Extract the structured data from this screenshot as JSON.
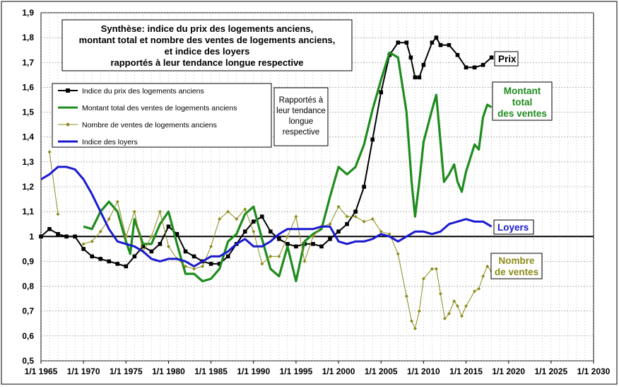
{
  "chart_data": {
    "type": "line",
    "title": [
      "Synthèse: indice du prix des logements anciens,",
      "montant total et nombre des ventes de logements anciens,",
      "et indice des loyers",
      "rapportés à leur tendance longue respective"
    ],
    "note": [
      "Rapportés à",
      "leur tendance",
      "longue",
      "respective"
    ],
    "xlim": [
      1965,
      2030
    ],
    "ylim": [
      0.5,
      1.9
    ],
    "x_ticks": [
      {
        "year": 1965,
        "label": "1/1 1965"
      },
      {
        "year": 1970,
        "label": "1/1 1970"
      },
      {
        "year": 1975,
        "label": "1/1 1975"
      },
      {
        "year": 1980,
        "label": "1/1 1980"
      },
      {
        "year": 1985,
        "label": "1/1 1985"
      },
      {
        "year": 1990,
        "label": "1/1 1990"
      },
      {
        "year": 1995,
        "label": "1/1 1995"
      },
      {
        "year": 2000,
        "label": "1/1 2000"
      },
      {
        "year": 2005,
        "label": "1/1 2005"
      },
      {
        "year": 2010,
        "label": "1/1 2010"
      },
      {
        "year": 2015,
        "label": "1/1 2015"
      },
      {
        "year": 2020,
        "label": "1/1 2020"
      },
      {
        "year": 2025,
        "label": "1/1 2025"
      },
      {
        "year": 2030,
        "label": "1/1 2030"
      }
    ],
    "y_ticks": [
      {
        "v": 1.9,
        "label": "1,9"
      },
      {
        "v": 1.8,
        "label": "1,8"
      },
      {
        "v": 1.7,
        "label": "1,7"
      },
      {
        "v": 1.6,
        "label": "1,6"
      },
      {
        "v": 1.5,
        "label": "1,5"
      },
      {
        "v": 1.4,
        "label": "1,4"
      },
      {
        "v": 1.3,
        "label": "1,3"
      },
      {
        "v": 1.2,
        "label": "1,2"
      },
      {
        "v": 1.1,
        "label": "1,1"
      },
      {
        "v": 1.0,
        "label": "1"
      },
      {
        "v": 0.9,
        "label": "0,9"
      },
      {
        "v": 0.8,
        "label": "0,8"
      },
      {
        "v": 0.7,
        "label": "0,7"
      },
      {
        "v": 0.6,
        "label": "0,6"
      },
      {
        "v": 0.5,
        "label": "0,5"
      }
    ],
    "reference_line": 1.0,
    "grid": true,
    "series": [
      {
        "key": "prix",
        "name": "Indice du prix des logements anciens",
        "end_label": [
          "Prix"
        ],
        "color": "#000000",
        "marker": "square",
        "points": [
          [
            1965,
            1.0
          ],
          [
            1966,
            1.03
          ],
          [
            1967,
            1.01
          ],
          [
            1968,
            1.0
          ],
          [
            1969,
            1.0
          ],
          [
            1970,
            0.95
          ],
          [
            1971,
            0.92
          ],
          [
            1972,
            0.91
          ],
          [
            1973,
            0.9
          ],
          [
            1974,
            0.89
          ],
          [
            1975,
            0.88
          ],
          [
            1976,
            0.92
          ],
          [
            1977,
            0.96
          ],
          [
            1978,
            0.94
          ],
          [
            1979,
            0.97
          ],
          [
            1980,
            1.04
          ],
          [
            1981,
            1.01
          ],
          [
            1982,
            0.94
          ],
          [
            1983,
            0.92
          ],
          [
            1984,
            0.9
          ],
          [
            1985,
            0.89
          ],
          [
            1986,
            0.89
          ],
          [
            1987,
            0.92
          ],
          [
            1988,
            0.97
          ],
          [
            1989,
            1.02
          ],
          [
            1990,
            1.06
          ],
          [
            1991,
            1.08
          ],
          [
            1992,
            1.02
          ],
          [
            1993,
            0.99
          ],
          [
            1994,
            0.97
          ],
          [
            1995,
            0.96
          ],
          [
            1996,
            0.97
          ],
          [
            1997,
            0.97
          ],
          [
            1998,
            0.96
          ],
          [
            1999,
            0.99
          ],
          [
            2000,
            1.02
          ],
          [
            2001,
            1.05
          ],
          [
            2002,
            1.1
          ],
          [
            2003,
            1.2
          ],
          [
            2004,
            1.39
          ],
          [
            2005,
            1.58
          ],
          [
            2006,
            1.73
          ],
          [
            2007,
            1.78
          ],
          [
            2008,
            1.78
          ],
          [
            2008.5,
            1.72
          ],
          [
            2009,
            1.64
          ],
          [
            2009.5,
            1.64
          ],
          [
            2010,
            1.69
          ],
          [
            2011,
            1.78
          ],
          [
            2011.5,
            1.8
          ],
          [
            2012,
            1.77
          ],
          [
            2013,
            1.77
          ],
          [
            2014,
            1.73
          ],
          [
            2015,
            1.68
          ],
          [
            2016,
            1.68
          ],
          [
            2017,
            1.69
          ],
          [
            2018,
            1.72
          ]
        ]
      },
      {
        "key": "montant",
        "name": "Montant total des ventes de logements anciens",
        "end_label": [
          "Montant",
          "total",
          "des ventes"
        ],
        "color": "#1e8c1e",
        "marker": "none",
        "points": [
          [
            1970,
            1.04
          ],
          [
            1971,
            1.03
          ],
          [
            1972,
            1.1
          ],
          [
            1973,
            1.14
          ],
          [
            1974,
            1.1
          ],
          [
            1975,
            0.98
          ],
          [
            1975.5,
            0.93
          ],
          [
            1976,
            1.07
          ],
          [
            1977,
            0.97
          ],
          [
            1978,
            0.97
          ],
          [
            1979,
            1.05
          ],
          [
            1980,
            1.1
          ],
          [
            1981,
            0.97
          ],
          [
            1982,
            0.85
          ],
          [
            1983,
            0.85
          ],
          [
            1984,
            0.82
          ],
          [
            1985,
            0.83
          ],
          [
            1986,
            0.87
          ],
          [
            1987,
            0.98
          ],
          [
            1988,
            1.01
          ],
          [
            1989,
            1.09
          ],
          [
            1990,
            1.12
          ],
          [
            1991,
            0.99
          ],
          [
            1992,
            0.87
          ],
          [
            1993,
            0.84
          ],
          [
            1994,
            0.96
          ],
          [
            1995,
            0.82
          ],
          [
            1996,
            0.98
          ],
          [
            1997,
            1.01
          ],
          [
            1998,
            1.03
          ],
          [
            1999,
            1.16
          ],
          [
            2000,
            1.28
          ],
          [
            2001,
            1.25
          ],
          [
            2002,
            1.28
          ],
          [
            2003,
            1.37
          ],
          [
            2004,
            1.51
          ],
          [
            2005,
            1.63
          ],
          [
            2006,
            1.74
          ],
          [
            2007,
            1.72
          ],
          [
            2008,
            1.5
          ],
          [
            2008.6,
            1.22
          ],
          [
            2009,
            1.08
          ],
          [
            2009.5,
            1.22
          ],
          [
            2010,
            1.38
          ],
          [
            2011,
            1.51
          ],
          [
            2011.5,
            1.57
          ],
          [
            2012,
            1.38
          ],
          [
            2012.4,
            1.22
          ],
          [
            2013,
            1.25
          ],
          [
            2013.6,
            1.29
          ],
          [
            2014,
            1.22
          ],
          [
            2014.5,
            1.18
          ],
          [
            2015,
            1.26
          ],
          [
            2016,
            1.37
          ],
          [
            2016.5,
            1.35
          ],
          [
            2017,
            1.48
          ],
          [
            2017.5,
            1.53
          ],
          [
            2018,
            1.52
          ]
        ]
      },
      {
        "key": "nombre",
        "name": "Nombre de ventes de logements anciens",
        "end_label": [
          "Nombre",
          "de ventes"
        ],
        "color": "#8b8b1a",
        "marker": "diamond",
        "points": [
          [
            1966,
            1.34
          ],
          [
            1967,
            1.09
          ],
          [
            1970,
            0.97
          ],
          [
            1971,
            0.98
          ],
          [
            1972,
            1.02
          ],
          [
            1973,
            1.07
          ],
          [
            1974,
            1.14
          ],
          [
            1975,
            1.0
          ],
          [
            1976,
            1.1
          ],
          [
            1977,
            0.94
          ],
          [
            1978,
            1.0
          ],
          [
            1979,
            1.1
          ],
          [
            1980,
            0.96
          ],
          [
            1981,
            0.91
          ],
          [
            1982,
            0.88
          ],
          [
            1983,
            0.87
          ],
          [
            1984,
            0.88
          ],
          [
            1985,
            0.96
          ],
          [
            1986,
            1.07
          ],
          [
            1987,
            1.1
          ],
          [
            1988,
            1.07
          ],
          [
            1989,
            1.11
          ],
          [
            1990,
            1.02
          ],
          [
            1991,
            0.89
          ],
          [
            1992,
            0.92
          ],
          [
            1993,
            0.92
          ],
          [
            1994,
            1.0
          ],
          [
            1995,
            1.08
          ],
          [
            1996,
            0.9
          ],
          [
            1997,
            1.0
          ],
          [
            1998,
            1.04
          ],
          [
            1999,
            1.05
          ],
          [
            2000,
            1.12
          ],
          [
            2001,
            1.08
          ],
          [
            2002,
            1.08
          ],
          [
            2003,
            1.06
          ],
          [
            2004,
            1.07
          ],
          [
            2005,
            1.02
          ],
          [
            2006,
            1.01
          ],
          [
            2007,
            0.93
          ],
          [
            2008,
            0.76
          ],
          [
            2008.6,
            0.66
          ],
          [
            2009,
            0.63
          ],
          [
            2009.5,
            0.7
          ],
          [
            2010,
            0.83
          ],
          [
            2011,
            0.87
          ],
          [
            2011.5,
            0.87
          ],
          [
            2012,
            0.77
          ],
          [
            2012.5,
            0.67
          ],
          [
            2013,
            0.69
          ],
          [
            2013.6,
            0.74
          ],
          [
            2014,
            0.72
          ],
          [
            2014.5,
            0.68
          ],
          [
            2015,
            0.72
          ],
          [
            2016,
            0.78
          ],
          [
            2016.5,
            0.79
          ],
          [
            2017,
            0.84
          ],
          [
            2017.5,
            0.88
          ],
          [
            2018,
            0.86
          ]
        ]
      },
      {
        "key": "loyers",
        "name": "Indice des loyers",
        "end_label": [
          "Loyers"
        ],
        "color": "#1a1ad0",
        "marker": "none",
        "points": [
          [
            1965,
            1.23
          ],
          [
            1966,
            1.25
          ],
          [
            1967,
            1.28
          ],
          [
            1968,
            1.28
          ],
          [
            1969,
            1.27
          ],
          [
            1970,
            1.23
          ],
          [
            1971,
            1.17
          ],
          [
            1972,
            1.1
          ],
          [
            1973,
            1.03
          ],
          [
            1974,
            0.98
          ],
          [
            1975,
            0.97
          ],
          [
            1976,
            0.96
          ],
          [
            1977,
            0.94
          ],
          [
            1978,
            0.91
          ],
          [
            1979,
            0.9
          ],
          [
            1980,
            0.91
          ],
          [
            1981,
            0.91
          ],
          [
            1982,
            0.9
          ],
          [
            1983,
            0.88
          ],
          [
            1984,
            0.9
          ],
          [
            1985,
            0.92
          ],
          [
            1986,
            0.92
          ],
          [
            1987,
            0.94
          ],
          [
            1988,
            0.97
          ],
          [
            1989,
            0.99
          ],
          [
            1990,
            0.96
          ],
          [
            1991,
            0.96
          ],
          [
            1992,
            0.98
          ],
          [
            1993,
            1.01
          ],
          [
            1994,
            1.03
          ],
          [
            1995,
            1.03
          ],
          [
            1996,
            1.03
          ],
          [
            1997,
            1.03
          ],
          [
            1998,
            1.04
          ],
          [
            1999,
            1.04
          ],
          [
            2000,
            0.98
          ],
          [
            2001,
            0.97
          ],
          [
            2002,
            0.98
          ],
          [
            2003,
            0.98
          ],
          [
            2004,
            0.99
          ],
          [
            2005,
            1.01
          ],
          [
            2006,
            1.0
          ],
          [
            2007,
            0.98
          ],
          [
            2008,
            1.0
          ],
          [
            2009,
            1.02
          ],
          [
            2010,
            1.02
          ],
          [
            2011,
            1.01
          ],
          [
            2012,
            1.02
          ],
          [
            2013,
            1.05
          ],
          [
            2014,
            1.06
          ],
          [
            2015,
            1.07
          ],
          [
            2016,
            1.06
          ],
          [
            2017,
            1.06
          ],
          [
            2018,
            1.04
          ]
        ]
      }
    ]
  }
}
